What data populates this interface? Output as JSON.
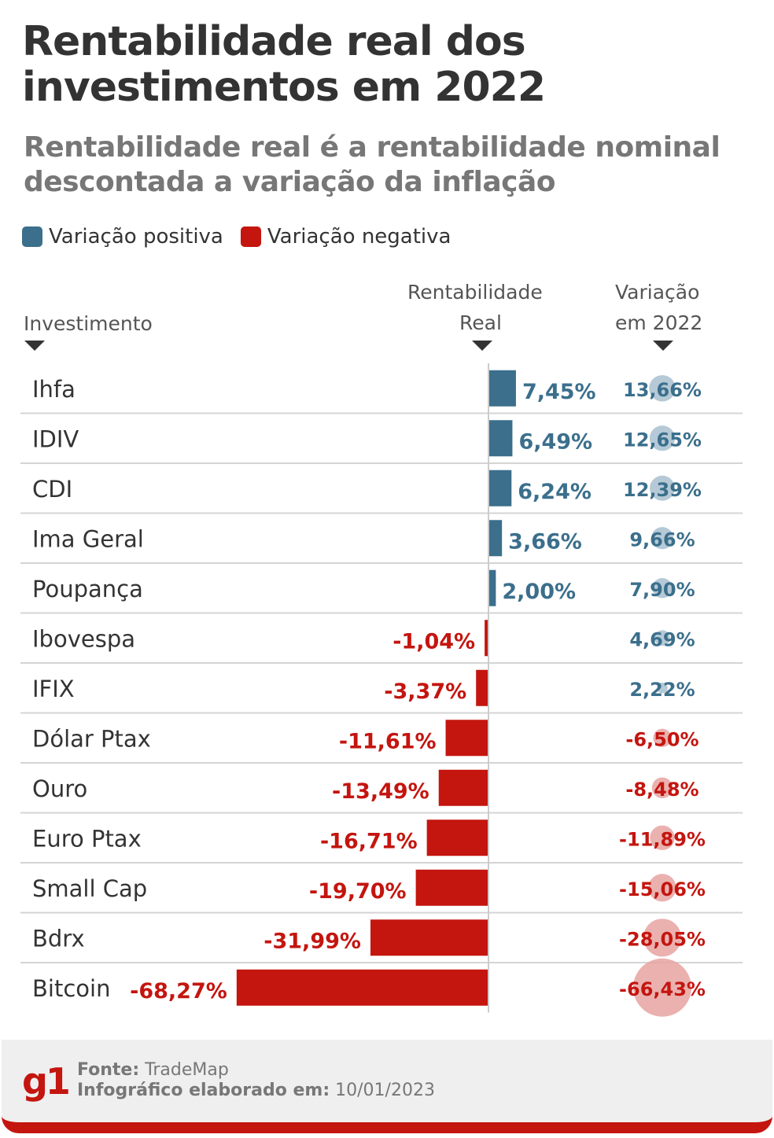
{
  "title": "Rentabilidade real dos investimentos em 2022",
  "subtitle": "Rentabilidade real é a rentabilidade nominal descontada a variação da inflação",
  "legend": {
    "positive": "Variação positiva",
    "negative": "Variação negativa"
  },
  "colors": {
    "positive": "#3b6f8c",
    "negative": "#c4150f",
    "positive_circle": "#a8c0cf",
    "negative_circle": "#e6a3a1"
  },
  "headers": {
    "investment": "Investimento",
    "real_line1": "Rentabilidade",
    "real_line2": "Real",
    "var_line1": "Variação",
    "var_line2": "em 2022"
  },
  "chart_data": {
    "type": "bar",
    "categories": [
      "Ihfa",
      "IDIV",
      "CDI",
      "Ima Geral",
      "Poupança",
      "Ibovespa",
      "IFIX",
      "Dólar Ptax",
      "Ouro",
      "Euro Ptax",
      "Small Cap",
      "Bdrx",
      "Bitcoin"
    ],
    "series": [
      {
        "name": "Rentabilidade Real",
        "values": [
          7.45,
          6.49,
          6.24,
          3.66,
          2.0,
          -1.04,
          -3.37,
          -11.61,
          -13.49,
          -16.71,
          -19.7,
          -31.99,
          -68.27
        ],
        "labels": [
          "7,45%",
          "6,49%",
          "6,24%",
          "3,66%",
          "2,00%",
          "-1,04%",
          "-3,37%",
          "-11,61%",
          "-13,49%",
          "-16,71%",
          "-19,70%",
          "-31,99%",
          "-68,27%"
        ]
      },
      {
        "name": "Variação em 2022",
        "values": [
          13.66,
          12.65,
          12.39,
          9.66,
          7.9,
          4.69,
          2.22,
          -6.5,
          -8.48,
          -11.89,
          -15.06,
          -28.05,
          -66.43
        ],
        "labels": [
          "13,66%",
          "12,65%",
          "12,39%",
          "9,66%",
          "7,90%",
          "4,69%",
          "2,22%",
          "-6,50%",
          "-8,48%",
          "-11,89%",
          "-15,06%",
          "-28,05%",
          "-66,43%"
        ]
      }
    ],
    "orientation": "horizontal"
  },
  "footer": {
    "logo": "g1",
    "source_label": "Fonte:",
    "source": "TradeMap",
    "date_label": "Infográfico elaborado em:",
    "date": "10/01/2023"
  }
}
